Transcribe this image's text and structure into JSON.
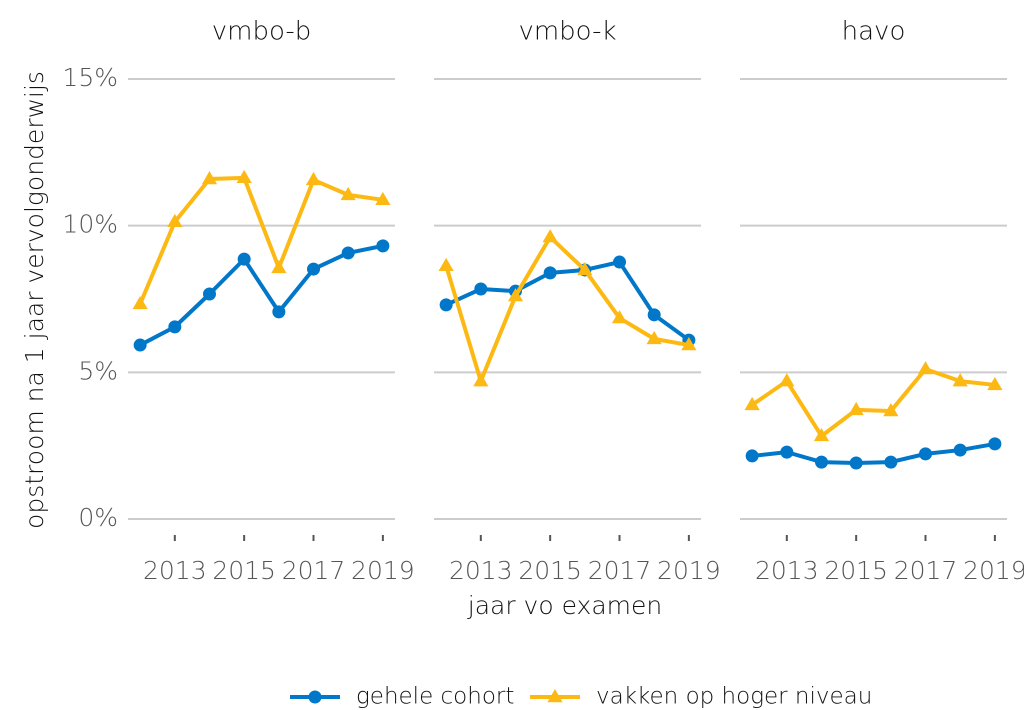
{
  "chart_data": {
    "type": "line",
    "ylabel": "opstroom na 1 jaar vervolgonderwijs",
    "xlabel": "jaar vo examen",
    "x": [
      2012,
      2013,
      2014,
      2015,
      2016,
      2017,
      2018,
      2019
    ],
    "xlim": [
      2011.65,
      2019.35
    ],
    "xticks": [
      2013,
      2015,
      2017,
      2019
    ],
    "ylim": [
      0,
      15
    ],
    "yticks": [
      {
        "value": 0,
        "label": "0%"
      },
      {
        "value": 5,
        "label": "5%"
      },
      {
        "value": 10,
        "label": "10%"
      },
      {
        "value": 15,
        "label": "15%"
      }
    ],
    "grid": true,
    "legend": "bottom",
    "series": [
      {
        "name": "gehele cohort",
        "color": "#0077c8",
        "marker": "circle"
      },
      {
        "name": "vakken op hoger niveau",
        "color": "#fdb913",
        "marker": "triangle"
      }
    ],
    "panels": [
      {
        "title": "vmbo-b",
        "values": [
          [
            5.93,
            6.55,
            7.67,
            8.86,
            7.06,
            8.52,
            9.07,
            9.31
          ],
          [
            7.33,
            10.13,
            11.59,
            11.63,
            8.56,
            11.56,
            11.05,
            10.88
          ]
        ]
      },
      {
        "title": "vmbo-k",
        "values": [
          [
            7.3,
            7.84,
            7.77,
            8.39,
            8.49,
            8.76,
            6.96,
            6.1
          ],
          [
            8.63,
            4.7,
            7.6,
            9.61,
            8.49,
            6.85,
            6.14,
            5.93
          ]
        ]
      },
      {
        "title": "havo",
        "values": [
          [
            2.15,
            2.28,
            1.94,
            1.91,
            1.94,
            2.22,
            2.35,
            2.56
          ],
          [
            3.89,
            4.7,
            2.83,
            3.72,
            3.68,
            5.11,
            4.7,
            4.57
          ]
        ]
      }
    ]
  }
}
